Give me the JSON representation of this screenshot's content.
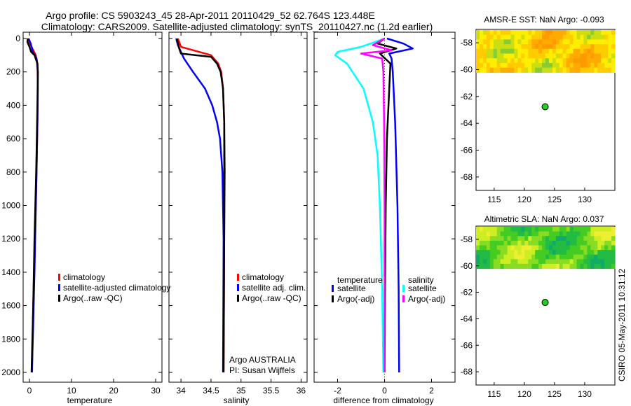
{
  "title_line1": "Argo profile: CS 5903243_45 28-Apr-2011 20110429_52 62.764S 123.448E",
  "title_line2": "Climatology: CARS2009. Satellite-adjusted climatology: synTS_20110427.nc (1.2d earlier)",
  "side_stamp": "CSIRO 05-May-2011 10:31:12",
  "colors": {
    "climatology": "#ff0000",
    "satellite": "#0000ff",
    "argo": "#000000",
    "satellite_sal": "#00ffff",
    "argo_sal_adj": "#ff00ff",
    "float_marker": "#22cc22"
  },
  "chart_data": [
    {
      "type": "line",
      "id": "temperature",
      "xlabel": "temperature",
      "ylabel": "",
      "xlim": [
        -1.5,
        31.5
      ],
      "ylim": [
        2050,
        -20
      ],
      "xticks": [
        0,
        10,
        20,
        30
      ],
      "xtick_labels": [
        "0",
        "10",
        "20",
        "30"
      ],
      "yticks": [
        0,
        200,
        400,
        600,
        800,
        1000,
        1200,
        1400,
        1600,
        1800,
        2000
      ],
      "ytick_labels": [
        "0",
        "200",
        "400",
        "600",
        "800",
        "1000",
        "1200",
        "1400",
        "1600",
        "1800",
        "2000"
      ],
      "legend": [
        "climatology",
        "satellite-adjusted climatology",
        "Argo(..raw -QC)"
      ],
      "series": [
        {
          "name": "climatology",
          "color": "#ff0000",
          "depth": [
            0,
            50,
            100,
            150,
            300,
            500,
            800,
            1200,
            1600,
            2000
          ],
          "values": [
            -0.5,
            0.5,
            1.5,
            1.9,
            2.0,
            1.9,
            1.7,
            1.3,
            0.9,
            0.6
          ]
        },
        {
          "name": "satellite-adjusted climatology",
          "color": "#0000ff",
          "depth": [
            0,
            30,
            80,
            120,
            200,
            500,
            900,
            1400,
            2000
          ],
          "values": [
            -0.2,
            0.3,
            0.8,
            1.7,
            2.0,
            1.9,
            1.6,
            1.2,
            0.6
          ]
        },
        {
          "name": "Argo(..raw -QC)",
          "color": "#000000",
          "depth": [
            0,
            20,
            50,
            80,
            100,
            150,
            200,
            400,
            800,
            1200,
            1600,
            2000
          ],
          "values": [
            -0.4,
            -0.5,
            0.0,
            0.4,
            1.2,
            1.9,
            2.0,
            1.9,
            1.6,
            1.2,
            0.9,
            0.5
          ]
        }
      ]
    },
    {
      "type": "line",
      "id": "salinity",
      "xlabel": "salinity",
      "ylabel": "",
      "xlim": [
        33.8,
        36.1
      ],
      "ylim": [
        2050,
        -20
      ],
      "xticks": [
        34,
        34.5,
        35,
        35.5,
        36
      ],
      "xtick_labels": [
        "34",
        "34.5",
        "35",
        "35.5",
        "36"
      ],
      "legend": [
        "climatology",
        "satellite adj. clim.",
        "Argo(..raw -QC)"
      ],
      "annotations": [
        "Argo AUSTRALIA",
        "PI: Susan Wijffels"
      ],
      "series": [
        {
          "name": "climatology",
          "color": "#ff0000",
          "depth": [
            0,
            50,
            80,
            100,
            150,
            200,
            300,
            500,
            800,
            1200,
            2000
          ],
          "values": [
            33.95,
            34.0,
            34.3,
            34.5,
            34.62,
            34.67,
            34.7,
            34.72,
            34.73,
            34.72,
            34.71
          ]
        },
        {
          "name": "satellite adj. clim.",
          "color": "#0000ff",
          "depth": [
            0,
            40,
            80,
            120,
            200,
            300,
            400,
            500,
            600,
            800,
            1200,
            2000
          ],
          "values": [
            33.92,
            33.95,
            34.0,
            34.05,
            34.2,
            34.4,
            34.52,
            34.6,
            34.65,
            34.69,
            34.71,
            34.7
          ]
        },
        {
          "name": "Argo(..raw -QC)",
          "color": "#000000",
          "depth": [
            0,
            60,
            90,
            110,
            150,
            200,
            300,
            500,
            800,
            1200,
            2000
          ],
          "values": [
            33.93,
            33.97,
            34.0,
            34.5,
            34.6,
            34.66,
            34.7,
            34.72,
            34.72,
            34.72,
            34.71
          ]
        }
      ]
    },
    {
      "type": "line",
      "id": "difference",
      "xlabel": "difference from climatology",
      "ylabel": "",
      "xlim": [
        -3.0,
        3.0
      ],
      "ylim": [
        2050,
        -20
      ],
      "xticks": [
        -2,
        0,
        2
      ],
      "xtick_labels": [
        "-2",
        "0",
        "2"
      ],
      "legend_headers": [
        "temperature",
        "salinity"
      ],
      "legend": [
        "satellite",
        "Argo(-adj)",
        "satellite",
        "Argo(-adj)"
      ],
      "series": [
        {
          "name": "temperature satellite",
          "color": "#0000ff",
          "depth": [
            0,
            30,
            60,
            90,
            120,
            200,
            500,
            1000,
            1500,
            2000
          ],
          "values": [
            0.1,
            0.8,
            1.2,
            0.2,
            0.3,
            0.35,
            0.45,
            0.55,
            0.6,
            0.62
          ]
        },
        {
          "name": "temperature Argo(-adj)",
          "color": "#000000",
          "depth": [
            0,
            30,
            60,
            90,
            150,
            300,
            600,
            1000,
            1500,
            2000
          ],
          "values": [
            0.0,
            -0.3,
            0.5,
            -0.2,
            0.25,
            0.2,
            0.1,
            0.05,
            0.02,
            0.0
          ]
        },
        {
          "name": "salinity satellite",
          "color": "#00ffff",
          "depth": [
            0,
            50,
            80,
            100,
            150,
            300,
            500,
            700,
            1000,
            1500,
            2000
          ],
          "values": [
            0.0,
            -1.0,
            -2.0,
            -2.1,
            -1.6,
            -0.9,
            -0.5,
            -0.3,
            -0.2,
            -0.1,
            -0.05
          ]
        },
        {
          "name": "salinity Argo(-adj)",
          "color": "#ff00ff",
          "depth": [
            0,
            40,
            70,
            90,
            120,
            200,
            500,
            1000,
            2000
          ],
          "values": [
            0.0,
            -0.5,
            0.3,
            -1.0,
            -0.1,
            -0.05,
            -0.02,
            0.0,
            0.0
          ]
        }
      ]
    },
    {
      "type": "heatmap",
      "id": "sst_map",
      "title": "AMSR-E SST: NaN Argo: -0.093",
      "xlim": [
        112,
        135
      ],
      "ylim": [
        -69,
        -57
      ],
      "xticks": [
        115,
        120,
        125,
        130
      ],
      "xtick_labels": [
        "115",
        "120",
        "125",
        "130"
      ],
      "yticks": [
        -58,
        -60,
        -62,
        -64,
        -66,
        -68
      ],
      "ytick_labels": [
        "-58",
        "-60",
        "-62",
        "-64",
        "-66",
        "-68"
      ],
      "data_lat_range": [
        -60.2,
        -57
      ],
      "palette": [
        "#ff9900",
        "#ffaa00",
        "#ffcc00",
        "#ffee00",
        "#ccdd11",
        "#88cc33"
      ],
      "float_position": {
        "lon": 123.448,
        "lat": -62.764
      }
    },
    {
      "type": "heatmap",
      "id": "sla_map",
      "title": "Altimetric SLA: NaN Argo: 0.037",
      "xlim": [
        112,
        135
      ],
      "ylim": [
        -69,
        -57
      ],
      "xticks": [
        115,
        120,
        125,
        130
      ],
      "xtick_labels": [
        "115",
        "120",
        "125",
        "130"
      ],
      "yticks": [
        -58,
        -60,
        -62,
        -64,
        -66,
        -68
      ],
      "ytick_labels": [
        "-58",
        "-60",
        "-62",
        "-64",
        "-66",
        "-68"
      ],
      "data_lat_range": [
        -60.2,
        -57
      ],
      "palette": [
        "#11aa66",
        "#22bb44",
        "#44cc22",
        "#88dd22",
        "#ccee22",
        "#eeee33"
      ],
      "float_position": {
        "lon": 123.448,
        "lat": -62.764
      }
    }
  ]
}
